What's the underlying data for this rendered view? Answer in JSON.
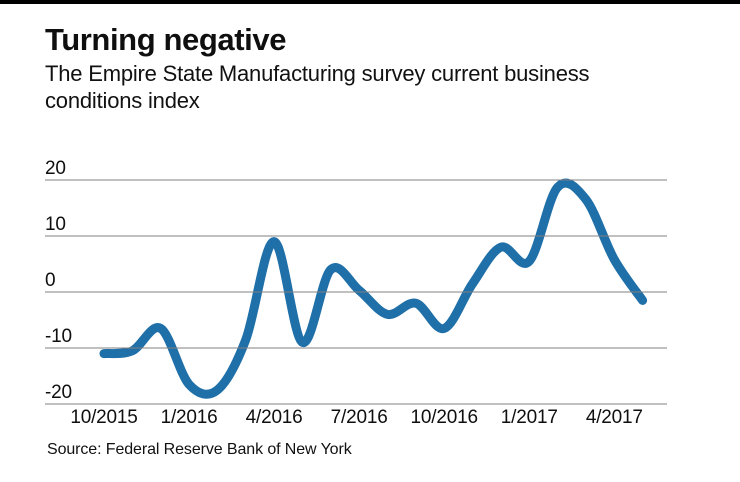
{
  "page": {
    "background_color": "#ffffff",
    "top_rule_color": "#000000"
  },
  "header": {
    "title": "Turning negative",
    "subtitle": "The Empire State Manufacturing survey current business conditions index"
  },
  "footer": {
    "source": "Source: Federal Reserve Bank of New York"
  },
  "chart_data": {
    "type": "line",
    "title": "Turning negative",
    "subtitle": "The Empire State Manufacturing survey current business conditions index",
    "series_name": "Empire State Manufacturing survey current business conditions index",
    "x": [
      "10/2015",
      "11/2015",
      "12/2015",
      "1/2016",
      "2/2016",
      "3/2016",
      "4/2016",
      "5/2016",
      "6/2016",
      "7/2016",
      "8/2016",
      "9/2016",
      "10/2016",
      "11/2016",
      "12/2016",
      "1/2017",
      "2/2017",
      "3/2017",
      "4/2017",
      "5/2017"
    ],
    "values": [
      -11,
      -10.5,
      -6.5,
      -16.5,
      -17.5,
      -8.5,
      9,
      -9,
      4,
      0.3,
      -4,
      -2,
      -6.5,
      1.5,
      8,
      5.5,
      18.7,
      16.5,
      5.8,
      -1.5
    ],
    "x_tick_labels": [
      "10/2015",
      "1/2016",
      "4/2016",
      "7/2016",
      "10/2016",
      "1/2017",
      "4/2017"
    ],
    "x_tick_indices": [
      0,
      3,
      6,
      9,
      12,
      15,
      18
    ],
    "y_tick_labels": [
      "20",
      "10",
      "0",
      "-10",
      "-20"
    ],
    "y_ticks": [
      20,
      10,
      0,
      -10,
      -20
    ],
    "ylim": [
      -22,
      24
    ],
    "grid": "horizontal",
    "gridlines_over_line": true,
    "legend": "none",
    "smoothing": "spline",
    "line_color": "#1f6fa8",
    "grid_color": "#828282",
    "source": "Source: Federal Reserve Bank of New York"
  }
}
